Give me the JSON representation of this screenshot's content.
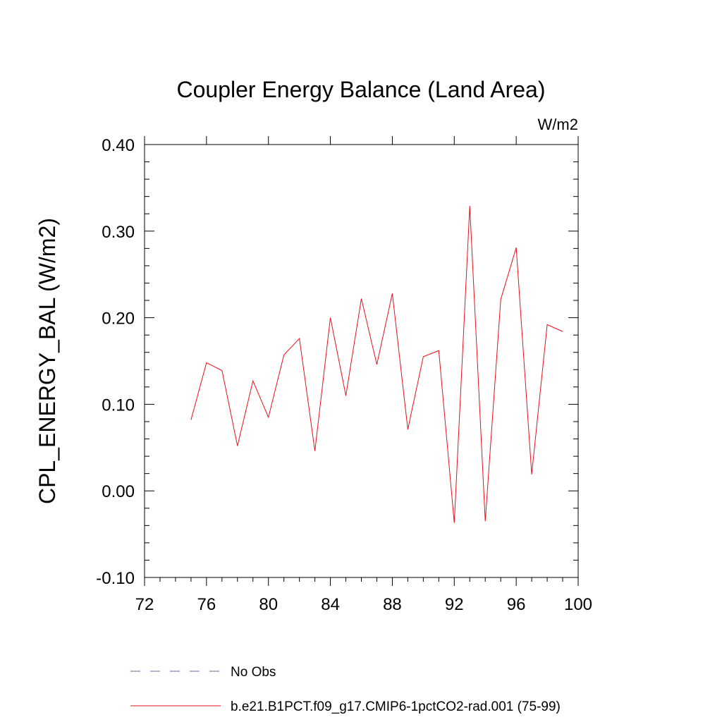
{
  "chart_data": {
    "type": "line",
    "title": "Coupler Energy Balance (Land Area)",
    "units_label": "W/m2",
    "xlabel": "",
    "ylabel": "CPL_ENERGY_BAL  (W/m2)",
    "xlim": [
      72,
      100
    ],
    "ylim": [
      -0.1,
      0.4
    ],
    "x_ticks": [
      72,
      76,
      80,
      84,
      88,
      92,
      96,
      100
    ],
    "x_tick_labels": [
      "72",
      "76",
      "80",
      "84",
      "88",
      "92",
      "96",
      "100"
    ],
    "y_ticks": [
      -0.1,
      0.0,
      0.1,
      0.2,
      0.3,
      0.4
    ],
    "y_tick_labels": [
      "-0.10",
      "0.00",
      "0.10",
      "0.20",
      "0.30",
      "0.40"
    ],
    "grid": false,
    "legend_placement": "bottom",
    "legend": [
      {
        "label": "No Obs",
        "color": "#6b5fb5",
        "style": "dashed"
      },
      {
        "label": "b.e21.B1PCT.f09_g17.CMIP6-1pctCO2-rad.001 (75-99)",
        "color": "#e8101c",
        "style": "solid"
      }
    ],
    "series": [
      {
        "name": "b.e21.B1PCT.f09_g17.CMIP6-1pctCO2-rad.001 (75-99)",
        "color": "#e8101c",
        "x": [
          75,
          76,
          77,
          78,
          79,
          80,
          81,
          82,
          83,
          84,
          85,
          86,
          87,
          88,
          89,
          90,
          91,
          92,
          93,
          94,
          95,
          96,
          97,
          98,
          99
        ],
        "y": [
          0.082,
          0.148,
          0.139,
          0.052,
          0.127,
          0.085,
          0.157,
          0.176,
          0.046,
          0.2,
          0.11,
          0.222,
          0.146,
          0.228,
          0.071,
          0.155,
          0.162,
          -0.037,
          0.329,
          -0.035,
          0.221,
          0.281,
          0.019,
          0.192,
          0.184
        ]
      }
    ]
  }
}
